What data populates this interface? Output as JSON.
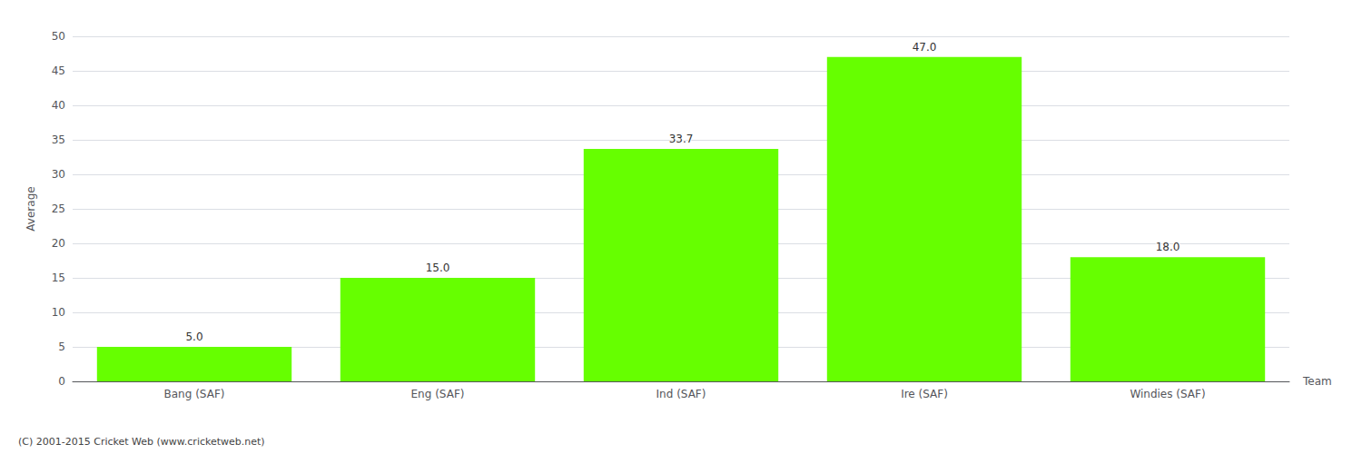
{
  "chart_data": {
    "type": "bar",
    "categories": [
      "Bang (SAF)",
      "Eng (SAF)",
      "Ind (SAF)",
      "Ire (SAF)",
      "Windies (SAF)"
    ],
    "values": [
      5.0,
      15.0,
      33.7,
      47.0,
      18.0
    ],
    "value_labels": [
      "5.0",
      "15.0",
      "33.7",
      "47.0",
      "18.0"
    ],
    "data_labels": true,
    "color": "#66ff00",
    "xlabel": "Team",
    "ylabel": "Average",
    "ylim": [
      0,
      50
    ],
    "yticks": [
      0,
      5,
      10,
      15,
      20,
      25,
      30,
      35,
      40,
      45,
      50
    ],
    "grid": true,
    "footer": "(C) 2001-2015 Cricket Web (www.cricketweb.net)"
  }
}
